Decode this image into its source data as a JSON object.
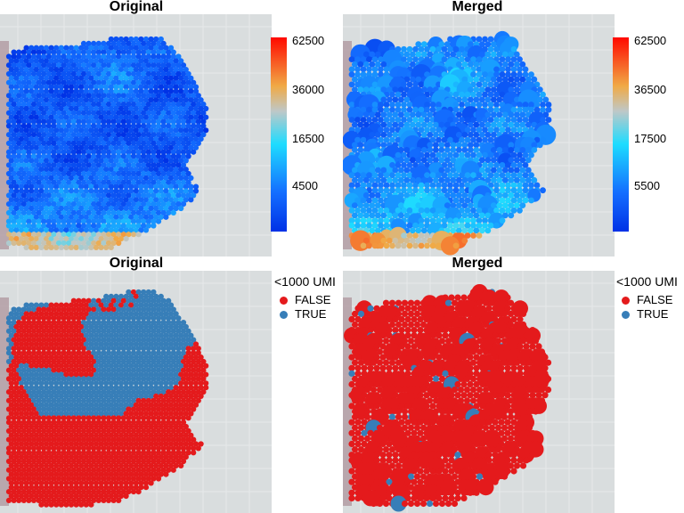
{
  "chart_data": [
    {
      "type": "heatmap",
      "title": "Original",
      "colorbar": {
        "ticks": [
          "62500",
          "36000",
          "16500",
          "4500"
        ]
      }
    },
    {
      "type": "heatmap",
      "title": "Merged",
      "colorbar": {
        "ticks": [
          "62500",
          "36500",
          "17500",
          "5500"
        ]
      }
    },
    {
      "type": "scatter",
      "title": "Original",
      "legend": {
        "title": "<1000 UMI",
        "entries": [
          "FALSE",
          "TRUE"
        ],
        "colors": [
          "#e41a1c",
          "#377eb8"
        ]
      }
    },
    {
      "type": "scatter",
      "title": "Merged",
      "legend": {
        "title": "<1000 UMI",
        "entries": [
          "FALSE",
          "TRUE"
        ],
        "colors": [
          "#e41a1c",
          "#377eb8"
        ]
      }
    }
  ]
}
